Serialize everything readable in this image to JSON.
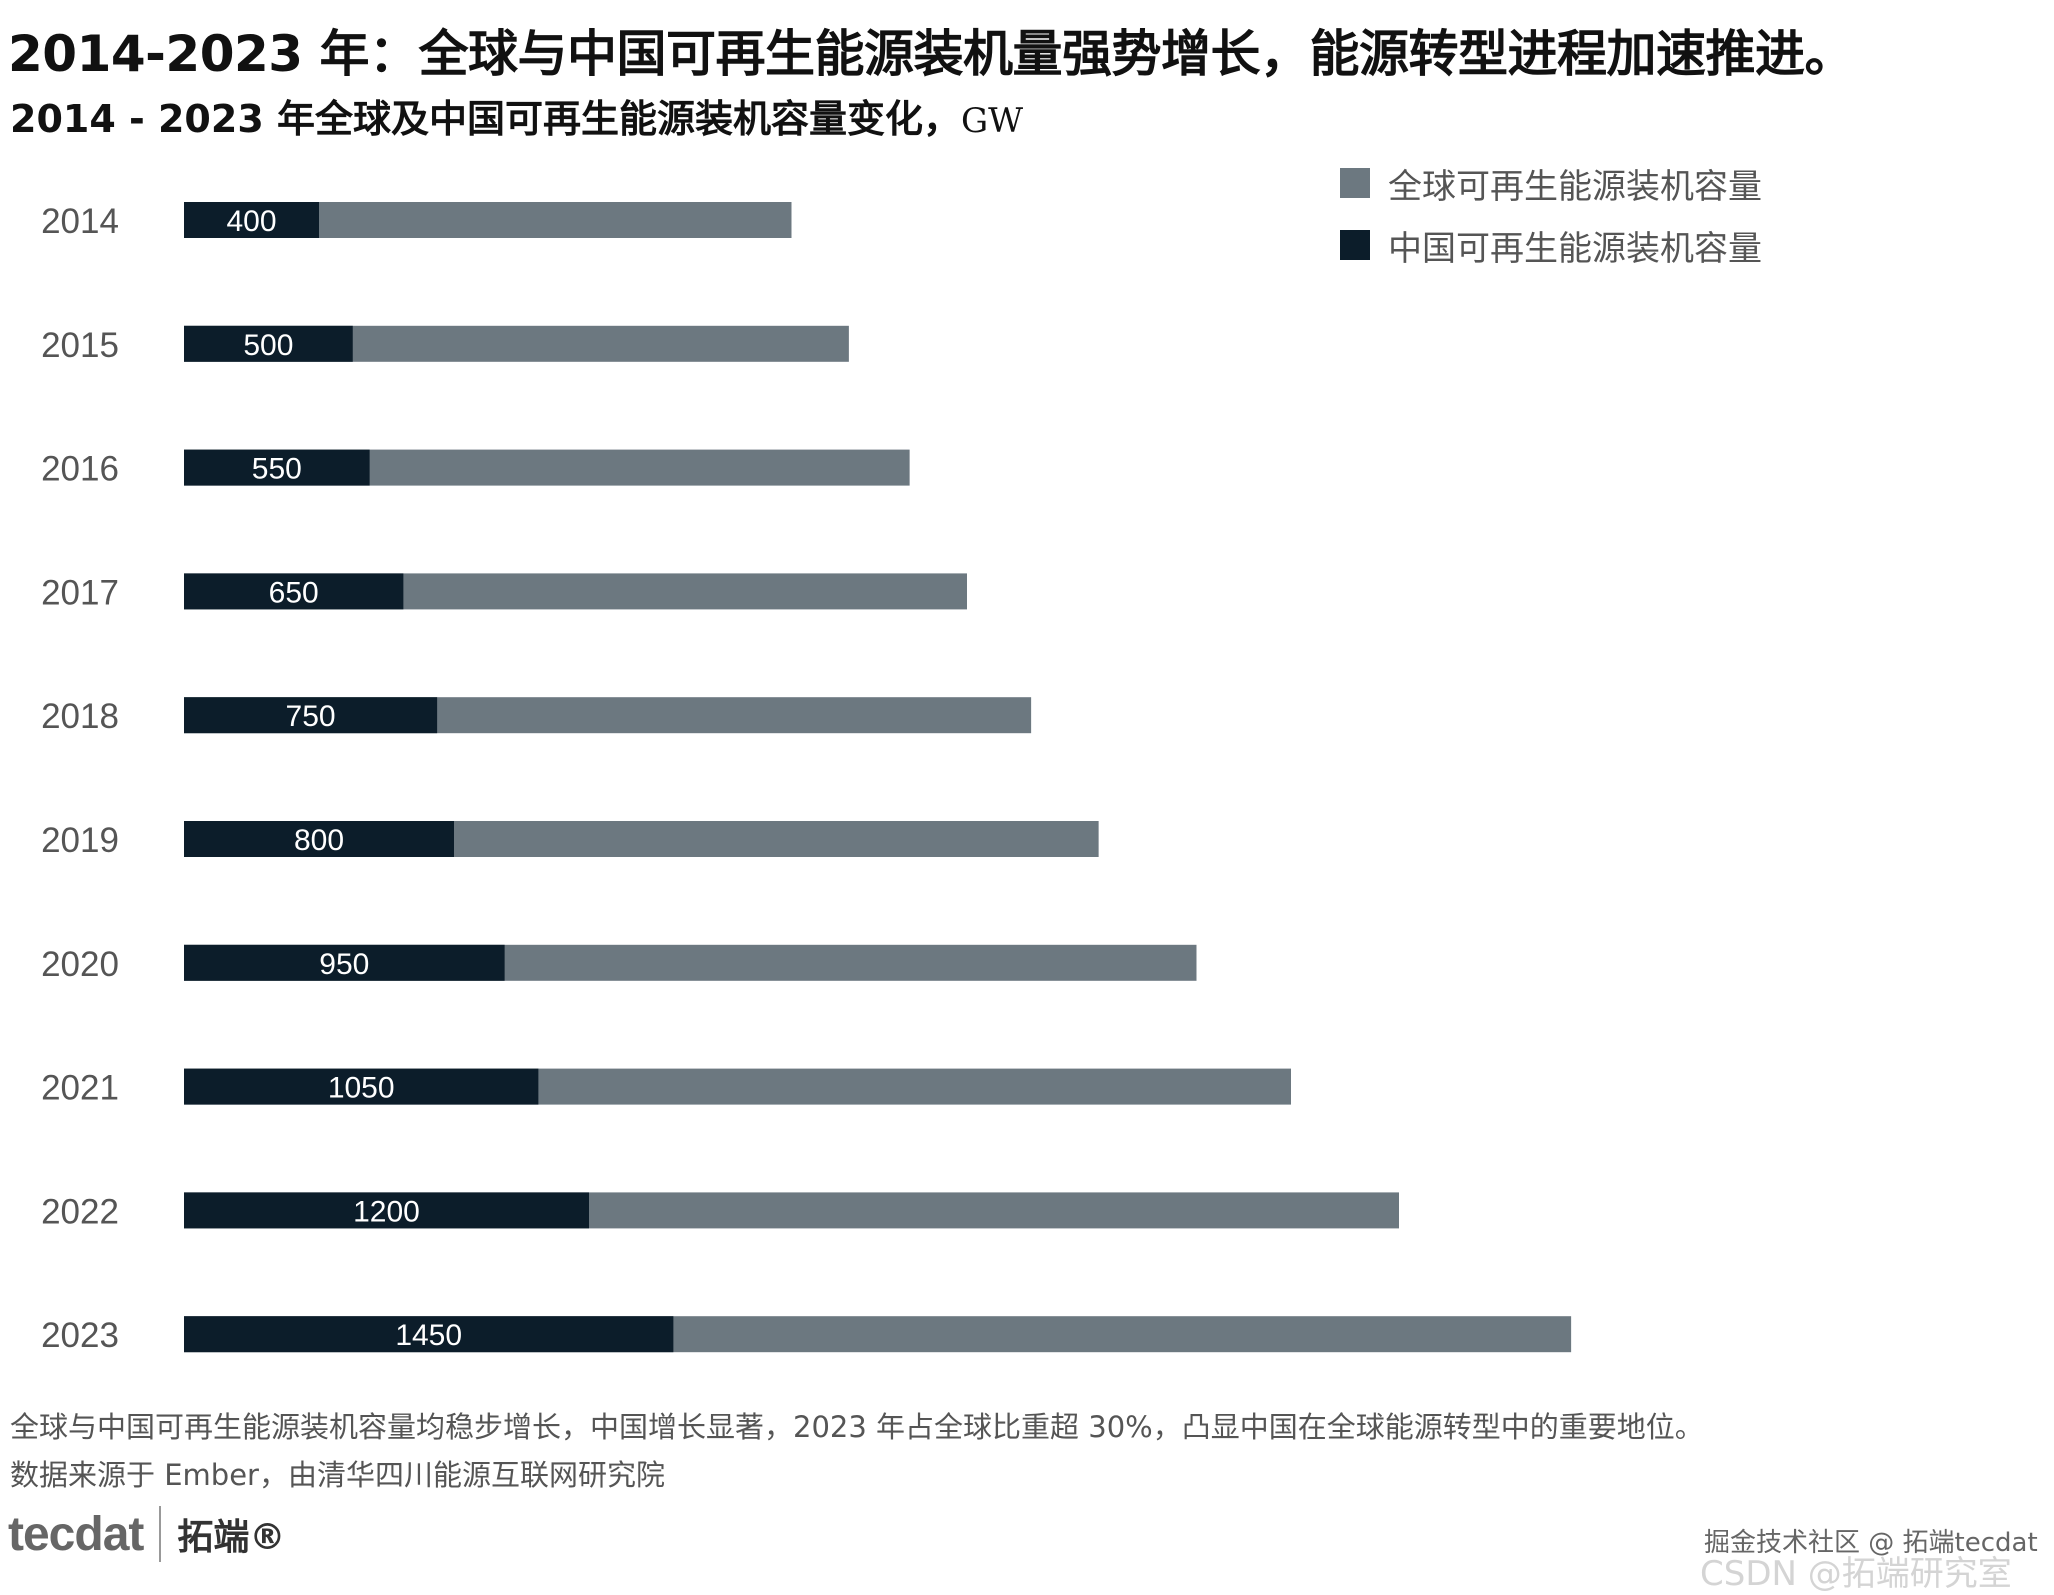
{
  "header": {
    "title": "2014-2023 年：全球与中国可再生能源装机量强势增长，能源转型进程加速推进。",
    "chart_title": "2014 - 2023 年全球及中国可再生能源装机容量变化，",
    "chart_unit": "GW"
  },
  "legend": {
    "global_label": "全球可再生能源装机容量",
    "china_label": "中国可再生能源装机容量"
  },
  "colors": {
    "global": "#6c7880",
    "china": "#0c1d2a",
    "label_text": "#ffffff",
    "tick_text": "#555555"
  },
  "chart_data": {
    "type": "bar",
    "orientation": "horizontal",
    "stacked": false,
    "categories": [
      "2014",
      "2015",
      "2016",
      "2017",
      "2018",
      "2019",
      "2020",
      "2021",
      "2022",
      "2023"
    ],
    "series": [
      {
        "name": "全球可再生能源装机容量",
        "values": [
          1800,
          1970,
          2150,
          2320,
          2510,
          2710,
          3000,
          3280,
          3600,
          4110
        ]
      },
      {
        "name": "中国可再生能源装机容量",
        "values": [
          400,
          500,
          550,
          650,
          750,
          800,
          950,
          1050,
          1200,
          1450
        ]
      }
    ],
    "data_labels": [
      "400",
      "500",
      "550",
      "650",
      "750",
      "800",
      "950",
      "1050",
      "1200",
      "1450"
    ],
    "legend_position": "top-right",
    "grid": false
  },
  "footer": {
    "note": "全球与中国可再生能源装机容量均稳步增长，中国增长显著，2023 年占全球比重超 30%，凸显中国在全球能源转型中的重要地位。",
    "source": "数据来源于 Ember，由清华四川能源互联网研究院",
    "logo_text": "tecdat",
    "logo_cn": "拓端®",
    "watermark_1": "掘金技术社区 @ 拓端tecdat",
    "watermark_2": "CSDN @拓端研究室"
  }
}
